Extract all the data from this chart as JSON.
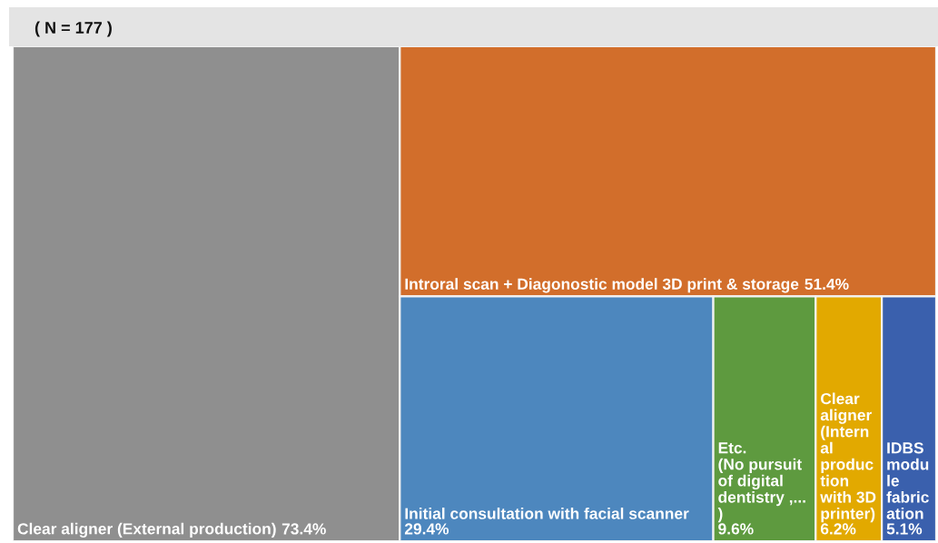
{
  "chart_data": {
    "type": "other",
    "title": "( N = 177 )",
    "categories": [
      "Clear aligner (External production)",
      "Introral scan + Diagonostic model 3D print & storage",
      "Initial consultation with facial scanner",
      "Etc.\n(No pursuit of digital dentistry ,... )",
      "Clear aligner (Internal production with 3D printer)",
      "IDBS module fabrication"
    ],
    "values": [
      73.4,
      51.4,
      29.4,
      9.6,
      6.2,
      5.1
    ],
    "value_labels": [
      "73.4%",
      "51.4%",
      "29.4%",
      "9.6%",
      "6.2%",
      "5.1%"
    ],
    "colors": [
      "#8f8f8f",
      "#d26e2b",
      "#4d87be",
      "#5e9a3f",
      "#e2a900",
      "#3a60ad"
    ]
  }
}
